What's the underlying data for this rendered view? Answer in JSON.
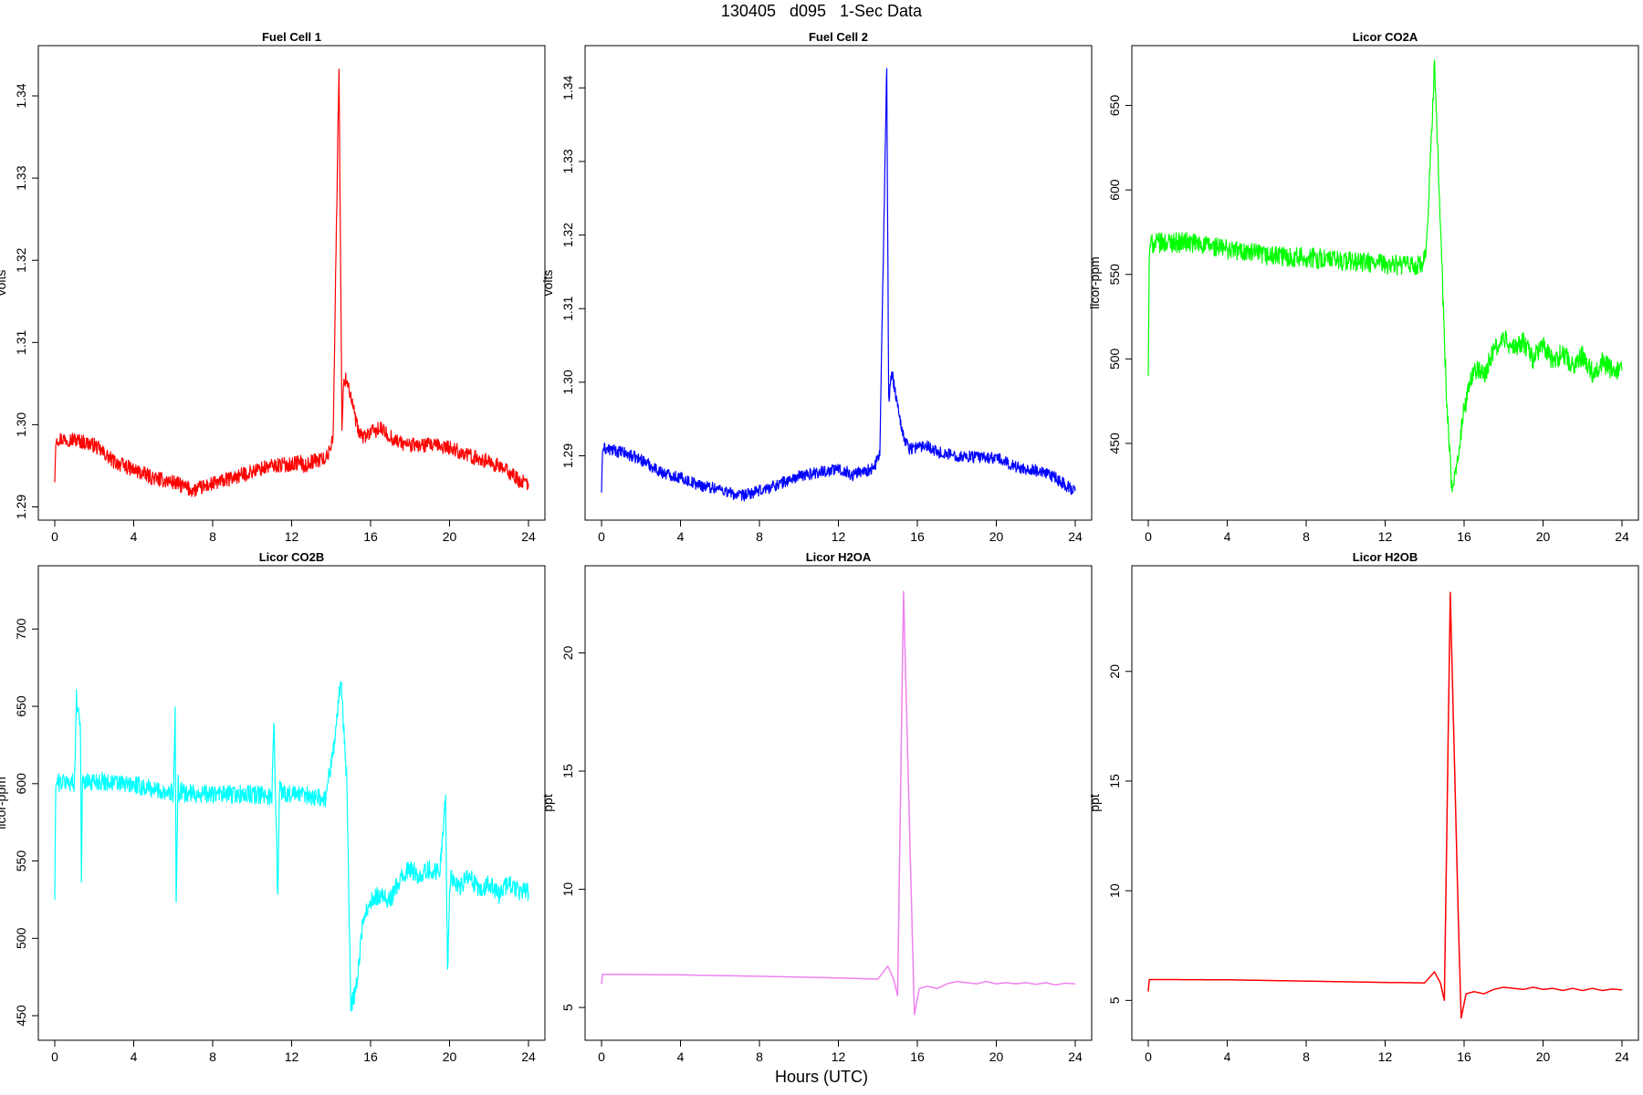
{
  "figure": {
    "title": "130405   d095   1-Sec Data",
    "xlabel": "Hours (UTC)"
  },
  "chart_data": [
    {
      "type": "line",
      "title": "Fuel Cell 1",
      "ylabel": "volts",
      "color": "#ff0000",
      "noise": 0.0009,
      "xlim": [
        0,
        24
      ],
      "ylim": [
        1.2895,
        1.345
      ],
      "xticks": [
        0,
        4,
        8,
        12,
        16,
        20,
        24
      ],
      "yticks": [
        "1.29",
        "1.30",
        "1.31",
        "1.32",
        "1.33",
        "1.34"
      ],
      "series": [
        {
          "x": [
            0,
            0.05,
            0.1,
            1,
            2,
            3,
            4,
            5,
            6,
            7,
            8,
            9,
            10,
            11,
            12,
            12.5,
            12.6,
            13,
            13.8,
            14.1,
            14.4,
            14.55,
            14.65,
            14.8,
            15,
            15.2,
            15.4,
            15.6,
            16,
            16.5,
            17,
            17.5,
            18,
            19,
            20,
            21,
            22,
            23,
            23.5,
            24
          ],
          "y": [
            1.293,
            1.2975,
            1.2983,
            1.2982,
            1.2975,
            1.2955,
            1.2945,
            1.2935,
            1.293,
            1.292,
            1.2928,
            1.2935,
            1.2943,
            1.295,
            1.2952,
            1.2955,
            1.2948,
            1.2955,
            1.296,
            1.2985,
            1.3435,
            1.2995,
            1.3055,
            1.3055,
            1.3035,
            1.301,
            1.299,
            1.2985,
            1.299,
            1.2995,
            1.2985,
            1.2978,
            1.2975,
            1.2975,
            1.2972,
            1.2962,
            1.2955,
            1.2943,
            1.2932,
            1.2928
          ]
        }
      ]
    },
    {
      "type": "line",
      "title": "Fuel Cell 2",
      "ylabel": "volts",
      "color": "#0000ff",
      "noise": 0.0008,
      "xlim": [
        0,
        24
      ],
      "ylim": [
        1.2825,
        1.3445
      ],
      "xticks": [
        0,
        4,
        8,
        12,
        16,
        20,
        24
      ],
      "yticks": [
        "1.29",
        "1.30",
        "1.31",
        "1.32",
        "1.33",
        "1.34"
      ],
      "series": [
        {
          "x": [
            0,
            0.05,
            0.1,
            1,
            2,
            3,
            4,
            5,
            6,
            7,
            8,
            9,
            10,
            11,
            12,
            12.5,
            12.6,
            13,
            13.8,
            14.1,
            14.45,
            14.55,
            14.7,
            14.9,
            15.1,
            15.3,
            15.6,
            16,
            16.5,
            17,
            18,
            19,
            20,
            21,
            22,
            23,
            23.5,
            24
          ],
          "y": [
            1.285,
            1.2905,
            1.291,
            1.2905,
            1.2895,
            1.2878,
            1.287,
            1.286,
            1.2855,
            1.2845,
            1.2852,
            1.2862,
            1.2872,
            1.2878,
            1.2882,
            1.2878,
            1.2872,
            1.2878,
            1.2882,
            1.2905,
            1.343,
            1.2975,
            1.3015,
            1.2985,
            1.2955,
            1.2925,
            1.291,
            1.2912,
            1.2915,
            1.2905,
            1.29,
            1.2898,
            1.2897,
            1.2885,
            1.288,
            1.287,
            1.286,
            1.2852
          ]
        }
      ]
    },
    {
      "type": "line",
      "title": "Licor CO2A",
      "ylabel": "licor-ppm",
      "color": "#00ff00",
      "noise": 6,
      "xlim": [
        0,
        24
      ],
      "ylim": [
        410,
        680
      ],
      "xticks": [
        0,
        4,
        8,
        12,
        16,
        20,
        24
      ],
      "yticks": [
        "450",
        "500",
        "550",
        "600",
        "650"
      ],
      "series": [
        {
          "x": [
            0,
            0.05,
            0.1,
            1,
            2,
            4,
            6,
            8,
            10,
            12,
            13.9,
            14.1,
            14.5,
            14.8,
            15.1,
            15.4,
            15.7,
            16,
            16.5,
            17,
            17.5,
            18,
            18.5,
            19,
            19.5,
            20,
            20.5,
            21,
            21.5,
            22,
            22.5,
            23,
            23.5,
            24
          ],
          "y": [
            490,
            560,
            568,
            569,
            569,
            565,
            561,
            560,
            558,
            556,
            555,
            565,
            675,
            580,
            480,
            418,
            445,
            470,
            495,
            490,
            505,
            512,
            506,
            510,
            500,
            508,
            498,
            504,
            496,
            502,
            492,
            498,
            493,
            493
          ]
        }
      ]
    },
    {
      "type": "line",
      "title": "Licor CO2B",
      "ylabel": "licor-ppm",
      "color": "#00ffff",
      "noise": 6,
      "xlim": [
        0,
        24
      ],
      "ylim": [
        440,
        735
      ],
      "xticks": [
        0,
        4,
        8,
        12,
        16,
        20,
        24
      ],
      "yticks": [
        "450",
        "500",
        "550",
        "600",
        "650",
        "700"
      ],
      "series": [
        {
          "x": [
            0,
            0.05,
            0.1,
            1.0,
            1.1,
            1.3,
            1.35,
            1.4,
            2,
            4,
            6.0,
            6.1,
            6.15,
            6.25,
            6.3,
            6.4,
            6.5,
            8,
            10,
            11.0,
            11.1,
            11.3,
            11.4,
            11.5,
            11.7,
            12,
            13,
            13.7,
            14.2,
            14.5,
            14.8,
            15.0,
            15.3,
            15.6,
            16,
            16.5,
            17,
            17.5,
            18,
            18.5,
            19,
            19.5,
            19.8,
            19.9,
            20.0,
            20.1,
            20.5,
            21,
            21.5,
            22,
            22.5,
            23,
            23.5,
            24
          ],
          "y": [
            525,
            598,
            601,
            601,
            655,
            640,
            535,
            600,
            602,
            599,
            594,
            645,
            525,
            603,
            592,
            595,
            594,
            593,
            593,
            592,
            642,
            525,
            605,
            595,
            594,
            593,
            592,
            590,
            630,
            668,
            600,
            455,
            470,
            510,
            525,
            528,
            525,
            538,
            545,
            540,
            545,
            543,
            590,
            475,
            535,
            540,
            533,
            540,
            530,
            535,
            528,
            536,
            530,
            530
          ]
        }
      ]
    },
    {
      "type": "line",
      "title": "Licor H2OA",
      "ylabel": "ppt",
      "color": "#ee82ee",
      "noise": 0,
      "xlim": [
        0,
        24
      ],
      "ylim": [
        4.0,
        23.3
      ],
      "xticks": [
        0,
        4,
        8,
        12,
        16,
        20,
        24
      ],
      "yticks": [
        "5",
        "10",
        "15",
        "20"
      ],
      "series": [
        {
          "x": [
            0,
            0.05,
            1,
            4,
            8,
            12,
            14,
            14.5,
            14.8,
            15.0,
            15.3,
            15.7,
            15.85,
            16.1,
            16.5,
            17,
            17.5,
            18,
            18.5,
            19,
            19.5,
            20,
            20.5,
            21,
            21.5,
            22,
            22.5,
            23,
            23.5,
            24
          ],
          "y": [
            6.0,
            6.4,
            6.4,
            6.38,
            6.32,
            6.25,
            6.2,
            6.75,
            6.2,
            5.5,
            22.6,
            9.5,
            4.7,
            5.8,
            5.9,
            5.8,
            6.0,
            6.1,
            6.05,
            6.0,
            6.1,
            6.0,
            6.05,
            6.0,
            6.05,
            5.98,
            6.05,
            5.95,
            6.03,
            6.0
          ]
        }
      ]
    },
    {
      "type": "line",
      "title": "Licor H2OB",
      "ylabel": "ppt",
      "color": "#ff0000",
      "noise": 0,
      "xlim": [
        0,
        24
      ],
      "ylim": [
        3.6,
        24.4
      ],
      "xticks": [
        0,
        4,
        8,
        12,
        16,
        20,
        24
      ],
      "yticks": [
        "5",
        "10",
        "15",
        "20"
      ],
      "series": [
        {
          "x": [
            0,
            0.05,
            1,
            4,
            8,
            12,
            14,
            14.5,
            14.8,
            15.0,
            15.3,
            15.7,
            15.85,
            16.1,
            16.5,
            17,
            17.5,
            18,
            18.5,
            19,
            19.5,
            20,
            20.5,
            21,
            21.5,
            22,
            22.5,
            23,
            23.5,
            24
          ],
          "y": [
            5.4,
            5.95,
            5.95,
            5.94,
            5.88,
            5.82,
            5.8,
            6.3,
            5.8,
            5.0,
            23.6,
            9.0,
            4.2,
            5.3,
            5.4,
            5.3,
            5.5,
            5.6,
            5.55,
            5.5,
            5.6,
            5.5,
            5.55,
            5.45,
            5.55,
            5.45,
            5.55,
            5.45,
            5.52,
            5.48
          ]
        }
      ]
    }
  ]
}
